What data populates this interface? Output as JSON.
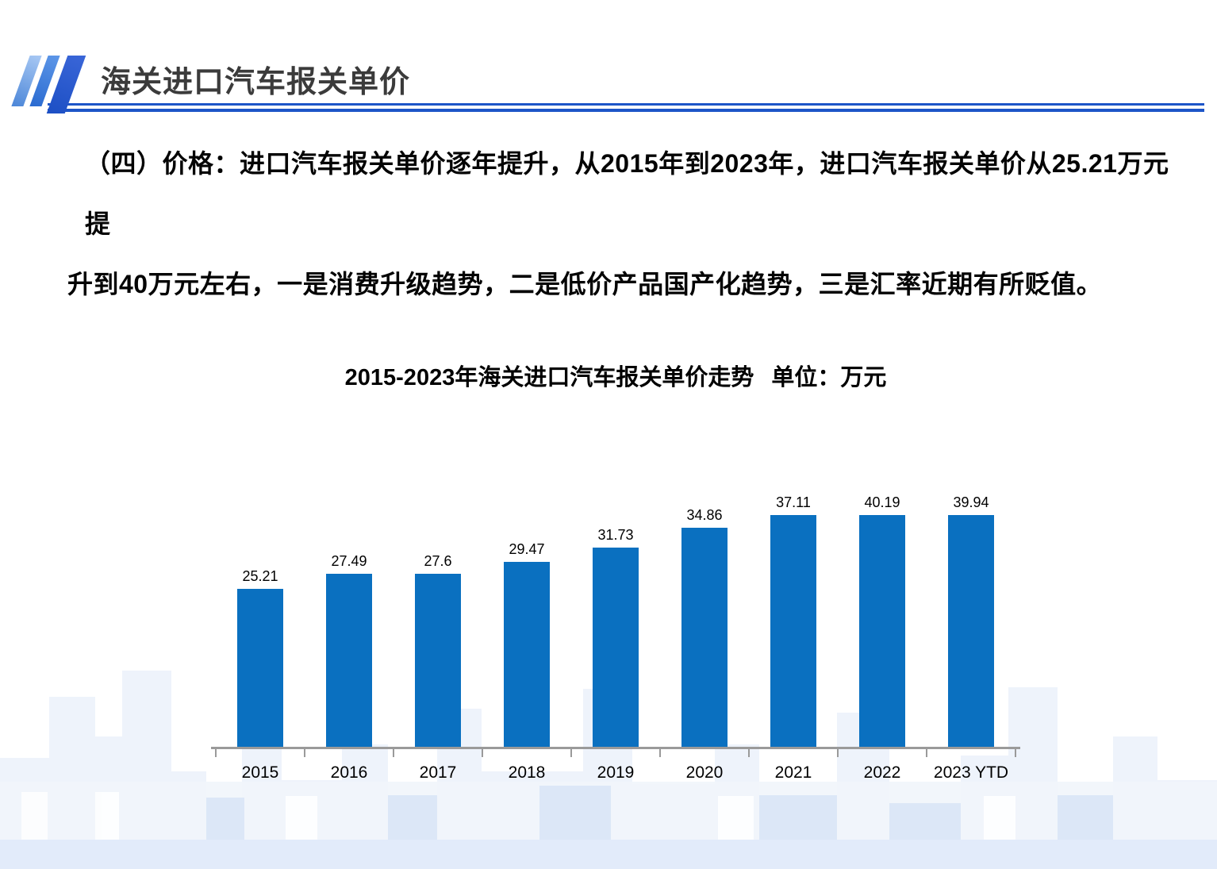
{
  "header": {
    "title": "海关进口汽车报关单价"
  },
  "body": {
    "line1": "（四）价格：进口汽车报关单价逐年提升，从2015年到2023年，进口汽车报关单价从25.21万元提",
    "line2": "升到40万元左右，一是消费升级趋势，二是低价产品国产化趋势，三是汇率近期有所贬值。"
  },
  "chart_data": {
    "type": "bar",
    "title": "2015-2023年海关进口汽车报关单价走势",
    "unit_label": "单位：万元",
    "categories": [
      "2015",
      "2016",
      "2017",
      "2018",
      "2019",
      "2020",
      "2021",
      "2022",
      "2023 YTD"
    ],
    "values": [
      25.21,
      27.49,
      27.6,
      29.47,
      31.73,
      34.86,
      37.11,
      40.19,
      39.94
    ],
    "value_labels": [
      "25.21",
      "27.49",
      "27.6",
      "29.47",
      "31.73",
      "34.86",
      "37.11",
      "40.19",
      "39.94"
    ],
    "ylim": [
      0,
      45
    ],
    "grid": false,
    "legend": "none",
    "bar_color": "#0a70c0"
  },
  "colors": {
    "accent": "#0a70c0",
    "header_line": "#1d55c8",
    "axis": "#9a9a9a",
    "title_text": "#3b3b3b",
    "logo_slash_light": "#a9c9f4",
    "logo_slash_mid": "#2a6ad0",
    "logo_slash_dark": "#1c4fc4"
  }
}
